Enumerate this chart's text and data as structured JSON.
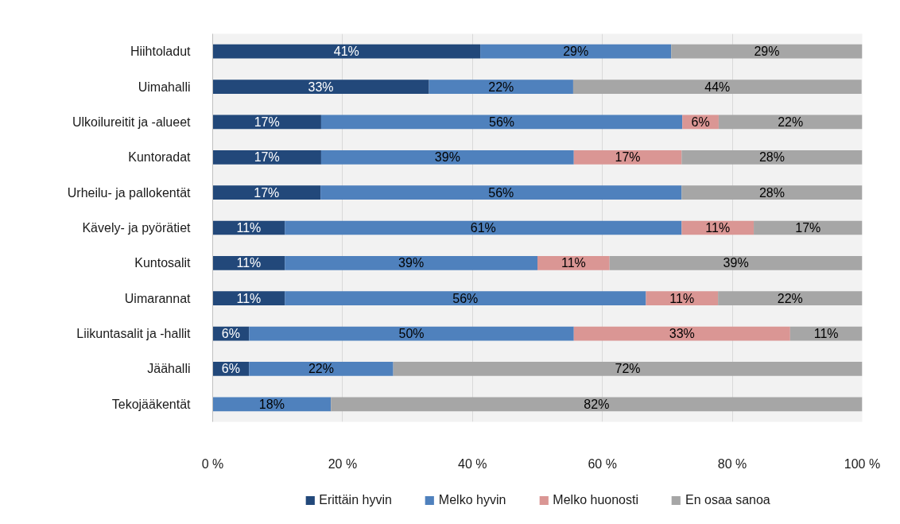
{
  "chart_data": {
    "type": "bar",
    "orientation": "horizontal",
    "stacked": true,
    "categories": [
      "Hiihtoladut",
      "Uimahalli",
      "Ulkoilureitit ja -alueet",
      "Kuntoradat",
      "Urheilu- ja pallokentät",
      "Kävely- ja pyörätiet",
      "Kuntosalit",
      "Uimarannat",
      "Liikuntasalit ja -hallit",
      "Jäähalli",
      "Tekojääkentät"
    ],
    "series": [
      {
        "name": "Erittäin hyvin",
        "color": "#22487a",
        "values": [
          41.2,
          33.3,
          16.7,
          16.7,
          16.6,
          11.1,
          11.1,
          11.1,
          5.6,
          5.6,
          null
        ],
        "value_labels": [
          "41%",
          "33%",
          "17%",
          "17%",
          "17%",
          "11%",
          "11%",
          "11%",
          "6%",
          "6%",
          null
        ]
      },
      {
        "name": "Melko hyvin",
        "color": "#4f81bd",
        "values": [
          29.4,
          22.2,
          55.6,
          38.9,
          55.6,
          61.1,
          38.9,
          55.6,
          50.0,
          22.2,
          18.2
        ],
        "value_labels": [
          "29%",
          "22%",
          "56%",
          "39%",
          "56%",
          "61%",
          "39%",
          "56%",
          "50%",
          "22%",
          "18%"
        ]
      },
      {
        "name": "Melko huonosti",
        "color": "#da9694",
        "values": [
          null,
          null,
          5.6,
          16.6,
          null,
          11.1,
          11.1,
          11.1,
          33.3,
          null,
          null
        ],
        "value_labels": [
          null,
          null,
          "6%",
          "17%",
          null,
          "11%",
          "11%",
          "11%",
          "33%",
          null,
          null
        ]
      },
      {
        "name": "En osaa sanoa",
        "color": "#a6a6a6",
        "values": [
          29.4,
          44.4,
          22.1,
          27.8,
          27.8,
          16.7,
          38.9,
          22.2,
          11.1,
          72.2,
          81.8
        ],
        "value_labels": [
          "29%",
          "44%",
          "22%",
          "28%",
          "28%",
          "17%",
          "39%",
          "22%",
          "11%",
          "72%",
          "82%"
        ]
      }
    ],
    "xlim": [
      0,
      100
    ],
    "xticks": [
      {
        "value": 0,
        "label": "0 %"
      },
      {
        "value": 20,
        "label": "20 %"
      },
      {
        "value": 40,
        "label": "40 %"
      },
      {
        "value": 60,
        "label": "60 %"
      },
      {
        "value": 80,
        "label": "80 %"
      },
      {
        "value": 100,
        "label": "100 %"
      }
    ],
    "grid": "x",
    "legend": "bottom"
  }
}
